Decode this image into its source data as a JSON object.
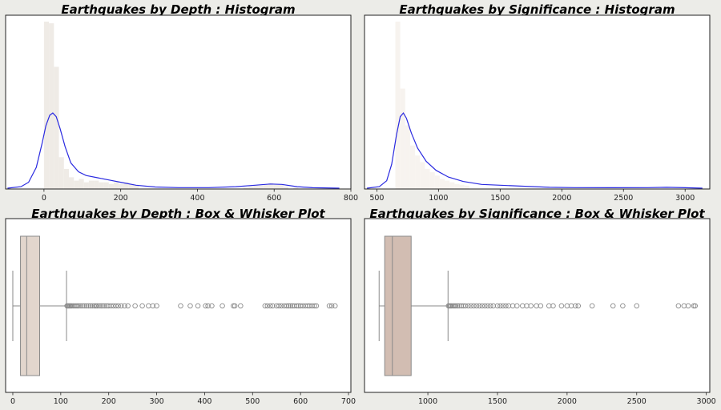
{
  "chart_data": [
    {
      "type": "histogram",
      "title": "Earthquakes by Depth : Histogram",
      "xlabel": "",
      "ylabel": "",
      "xlim": [
        -100,
        800
      ],
      "xticks": [
        0,
        200,
        400,
        600,
        800
      ],
      "ylim": [
        0,
        1
      ],
      "bins": [
        {
          "x0": 0,
          "x1": 13,
          "h": 1.0
        },
        {
          "x0": 13,
          "x1": 26,
          "h": 0.99
        },
        {
          "x0": 26,
          "x1": 39,
          "h": 0.73
        },
        {
          "x0": 39,
          "x1": 52,
          "h": 0.19
        },
        {
          "x0": 52,
          "x1": 65,
          "h": 0.12
        },
        {
          "x0": 65,
          "x1": 78,
          "h": 0.07
        },
        {
          "x0": 78,
          "x1": 91,
          "h": 0.05
        },
        {
          "x0": 91,
          "x1": 104,
          "h": 0.06
        },
        {
          "x0": 104,
          "x1": 117,
          "h": 0.04
        },
        {
          "x0": 117,
          "x1": 130,
          "h": 0.05
        },
        {
          "x0": 130,
          "x1": 143,
          "h": 0.05
        },
        {
          "x0": 143,
          "x1": 156,
          "h": 0.04
        },
        {
          "x0": 156,
          "x1": 169,
          "h": 0.04
        },
        {
          "x0": 169,
          "x1": 182,
          "h": 0.03
        },
        {
          "x0": 182,
          "x1": 195,
          "h": 0.04
        },
        {
          "x0": 195,
          "x1": 208,
          "h": 0.03
        },
        {
          "x0": 208,
          "x1": 221,
          "h": 0.04
        },
        {
          "x0": 221,
          "x1": 234,
          "h": 0.03
        },
        {
          "x0": 234,
          "x1": 247,
          "h": 0.02
        },
        {
          "x0": 520,
          "x1": 533,
          "h": 0.01
        },
        {
          "x0": 533,
          "x1": 546,
          "h": 0.015
        },
        {
          "x0": 546,
          "x1": 559,
          "h": 0.02
        },
        {
          "x0": 559,
          "x1": 572,
          "h": 0.02
        },
        {
          "x0": 572,
          "x1": 585,
          "h": 0.025
        },
        {
          "x0": 585,
          "x1": 598,
          "h": 0.035
        },
        {
          "x0": 598,
          "x1": 611,
          "h": 0.025
        },
        {
          "x0": 611,
          "x1": 624,
          "h": 0.025
        },
        {
          "x0": 624,
          "x1": 637,
          "h": 0.015
        },
        {
          "x0": 650,
          "x1": 663,
          "h": 0.008
        }
      ],
      "kde": [
        {
          "x": -95,
          "y": 0.0
        },
        {
          "x": -60,
          "y": 0.01
        },
        {
          "x": -40,
          "y": 0.04
        },
        {
          "x": -20,
          "y": 0.14
        },
        {
          "x": -5,
          "y": 0.3
        },
        {
          "x": 5,
          "y": 0.42
        },
        {
          "x": 15,
          "y": 0.49
        },
        {
          "x": 23,
          "y": 0.505
        },
        {
          "x": 32,
          "y": 0.48
        },
        {
          "x": 42,
          "y": 0.4
        },
        {
          "x": 55,
          "y": 0.28
        },
        {
          "x": 70,
          "y": 0.17
        },
        {
          "x": 90,
          "y": 0.11
        },
        {
          "x": 110,
          "y": 0.085
        },
        {
          "x": 140,
          "y": 0.07
        },
        {
          "x": 170,
          "y": 0.055
        },
        {
          "x": 200,
          "y": 0.04
        },
        {
          "x": 240,
          "y": 0.02
        },
        {
          "x": 290,
          "y": 0.008
        },
        {
          "x": 350,
          "y": 0.004
        },
        {
          "x": 430,
          "y": 0.004
        },
        {
          "x": 500,
          "y": 0.01
        },
        {
          "x": 550,
          "y": 0.02
        },
        {
          "x": 590,
          "y": 0.028
        },
        {
          "x": 620,
          "y": 0.025
        },
        {
          "x": 660,
          "y": 0.01
        },
        {
          "x": 700,
          "y": 0.003
        },
        {
          "x": 770,
          "y": 0.0
        }
      ],
      "colors": {
        "bars": "#efebe6",
        "kde": "#2a2ae0"
      }
    },
    {
      "type": "histogram",
      "title": "Earthquakes by Significance : Histogram",
      "xlabel": "",
      "ylabel": "",
      "xlim": [
        400,
        3200
      ],
      "xticks": [
        500,
        1000,
        1500,
        2000,
        2500,
        3000
      ],
      "ylim": [
        0,
        1
      ],
      "bins": [
        {
          "x0": 650,
          "x1": 690,
          "h": 1.0
        },
        {
          "x0": 690,
          "x1": 730,
          "h": 0.6
        },
        {
          "x0": 730,
          "x1": 770,
          "h": 0.38
        },
        {
          "x0": 770,
          "x1": 810,
          "h": 0.26
        },
        {
          "x0": 810,
          "x1": 850,
          "h": 0.2
        },
        {
          "x0": 850,
          "x1": 890,
          "h": 0.16
        },
        {
          "x0": 890,
          "x1": 930,
          "h": 0.12
        },
        {
          "x0": 930,
          "x1": 970,
          "h": 0.1
        },
        {
          "x0": 970,
          "x1": 1010,
          "h": 0.08
        },
        {
          "x0": 1010,
          "x1": 1050,
          "h": 0.06
        },
        {
          "x0": 1050,
          "x1": 1090,
          "h": 0.05
        },
        {
          "x0": 1090,
          "x1": 1130,
          "h": 0.04
        },
        {
          "x0": 1130,
          "x1": 1170,
          "h": 0.03
        },
        {
          "x0": 1170,
          "x1": 1210,
          "h": 0.025
        },
        {
          "x0": 1210,
          "x1": 1250,
          "h": 0.02
        }
      ],
      "kde": [
        {
          "x": 420,
          "y": 0.0
        },
        {
          "x": 520,
          "y": 0.01
        },
        {
          "x": 580,
          "y": 0.05
        },
        {
          "x": 620,
          "y": 0.16
        },
        {
          "x": 660,
          "y": 0.36
        },
        {
          "x": 690,
          "y": 0.48
        },
        {
          "x": 715,
          "y": 0.505
        },
        {
          "x": 740,
          "y": 0.47
        },
        {
          "x": 780,
          "y": 0.37
        },
        {
          "x": 830,
          "y": 0.27
        },
        {
          "x": 900,
          "y": 0.18
        },
        {
          "x": 980,
          "y": 0.12
        },
        {
          "x": 1080,
          "y": 0.075
        },
        {
          "x": 1200,
          "y": 0.045
        },
        {
          "x": 1350,
          "y": 0.025
        },
        {
          "x": 1500,
          "y": 0.02
        },
        {
          "x": 1700,
          "y": 0.013
        },
        {
          "x": 1900,
          "y": 0.006
        },
        {
          "x": 2100,
          "y": 0.004
        },
        {
          "x": 2400,
          "y": 0.003
        },
        {
          "x": 2700,
          "y": 0.004
        },
        {
          "x": 2850,
          "y": 0.006
        },
        {
          "x": 3000,
          "y": 0.003
        },
        {
          "x": 3140,
          "y": 0.0
        }
      ],
      "colors": {
        "bars": "#f7f3ef",
        "kde": "#2a2ae0"
      }
    },
    {
      "type": "box",
      "title": "Earthquakes by Depth : Box & Whisker Plot",
      "xlabel": "",
      "ylabel": "",
      "xlim": [
        -15,
        705
      ],
      "xticks": [
        0,
        100,
        200,
        300,
        400,
        500,
        600,
        700
      ],
      "whisker_low": 0,
      "q1": 16,
      "median": 29,
      "q3": 56,
      "whisker_high": 112,
      "outliers": [
        113,
        115,
        117,
        119,
        121,
        123,
        126,
        129,
        132,
        135,
        138,
        142,
        146,
        150,
        154,
        158,
        162,
        166,
        170,
        173,
        176,
        180,
        184,
        188,
        192,
        196,
        200,
        205,
        210,
        215,
        220,
        226,
        233,
        240,
        255,
        270,
        283,
        292,
        300,
        350,
        370,
        386,
        402,
        407,
        415,
        437,
        460,
        463,
        475,
        526,
        531,
        537,
        542,
        550,
        555,
        560,
        566,
        571,
        575,
        579,
        583,
        587,
        592,
        596,
        600,
        605,
        610,
        615,
        619,
        624,
        629,
        633,
        660,
        665,
        672
      ],
      "colors": {
        "box": "#e2d6cd",
        "edge": "#8a8a8a",
        "outlier": "#8a8a8a"
      }
    },
    {
      "type": "box",
      "title": "Earthquakes by Significance : Box & Whisker Plot",
      "xlabel": "",
      "ylabel": "",
      "xlim": [
        545,
        3025
      ],
      "xticks": [
        1000,
        1500,
        2000,
        2500,
        3000
      ],
      "whisker_low": 650,
      "q1": 690,
      "median": 745,
      "q3": 880,
      "whisker_high": 1145,
      "outliers": [
        1148,
        1155,
        1162,
        1170,
        1180,
        1190,
        1200,
        1212,
        1225,
        1240,
        1255,
        1270,
        1290,
        1310,
        1330,
        1350,
        1370,
        1390,
        1410,
        1430,
        1450,
        1470,
        1500,
        1520,
        1540,
        1560,
        1580,
        1610,
        1640,
        1680,
        1710,
        1740,
        1780,
        1810,
        1870,
        1900,
        1960,
        2000,
        2030,
        2060,
        2080,
        2180,
        2330,
        2400,
        2500,
        2800,
        2840,
        2870,
        2910,
        2920
      ],
      "colors": {
        "box": "#d2bdb2",
        "edge": "#8a8a8a",
        "outlier": "#8a8a8a"
      }
    }
  ]
}
